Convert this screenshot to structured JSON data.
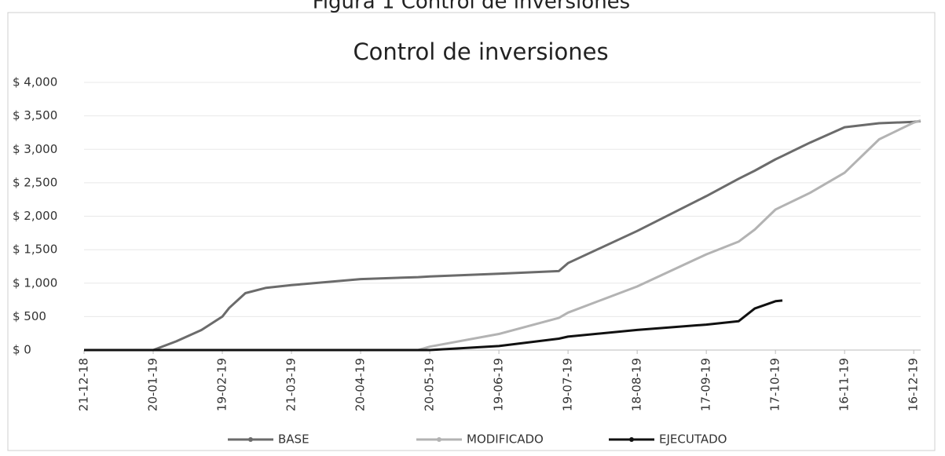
{
  "figure_caption": "Figura 1 Control de inversiones",
  "chart_data": {
    "type": "line",
    "title": "Control de inversiones",
    "x": [
      "21-12-18",
      "20-01-19",
      "30-01-19",
      "10-02-19",
      "19-02-19",
      "22-02-19",
      "01-03-19",
      "10-03-19",
      "21-03-19",
      "20-04-19",
      "15-05-19",
      "20-05-19",
      "19-06-19",
      "15-07-19",
      "19-07-19",
      "18-08-19",
      "17-09-19",
      "01-10-19",
      "08-10-19",
      "17-10-19",
      "20-10-19",
      "01-11-19",
      "16-11-19",
      "01-12-19",
      "16-12-19",
      "19-12-19"
    ],
    "series": [
      {
        "name": "BASE",
        "color": "#6b6b6b",
        "values": [
          0,
          0,
          130,
          300,
          500,
          630,
          850,
          930,
          970,
          1060,
          1090,
          1100,
          1140,
          1180,
          1300,
          1780,
          2300,
          2560,
          2680,
          2850,
          2900,
          3100,
          3330,
          3390,
          3410,
          3420
        ]
      },
      {
        "name": "MODIFICADO",
        "color": "#b3b3b3",
        "values": [
          0,
          0,
          0,
          0,
          0,
          0,
          0,
          0,
          0,
          0,
          0,
          50,
          240,
          480,
          560,
          950,
          1430,
          1620,
          1800,
          2100,
          2150,
          2350,
          2650,
          3150,
          3400,
          3430
        ]
      },
      {
        "name": "EJECUTADO",
        "color": "#111111",
        "values": [
          0,
          0,
          0,
          0,
          0,
          0,
          0,
          0,
          0,
          0,
          0,
          0,
          60,
          170,
          200,
          300,
          380,
          430,
          620,
          730,
          740,
          null,
          null,
          null,
          null,
          null
        ]
      }
    ],
    "xlim": [
      "21-12-18",
      "19-12-19"
    ],
    "xticks": [
      "21-12-18",
      "20-01-19",
      "19-02-19",
      "21-03-19",
      "20-04-19",
      "20-05-19",
      "19-06-19",
      "19-07-19",
      "18-08-19",
      "17-09-19",
      "17-10-19",
      "16-11-19",
      "16-12-19"
    ],
    "ylim": [
      0,
      4000
    ],
    "yticks": [
      {
        "value": 0,
        "label": "$ 0"
      },
      {
        "value": 500,
        "label": "$ 500"
      },
      {
        "value": 1000,
        "label": "$ 1,000"
      },
      {
        "value": 1500,
        "label": "$ 1,500"
      },
      {
        "value": 2000,
        "label": "$ 2,000"
      },
      {
        "value": 2500,
        "label": "$ 2,500"
      },
      {
        "value": 3000,
        "label": "$ 3,000"
      },
      {
        "value": 3500,
        "label": "$ 3,500"
      },
      {
        "value": 4000,
        "label": "$ 4,000"
      }
    ],
    "grid": true,
    "legend": "bottom"
  }
}
